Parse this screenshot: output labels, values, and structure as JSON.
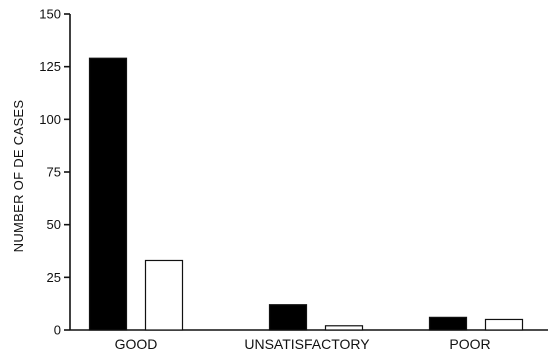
{
  "chart_data": {
    "type": "bar",
    "title": "",
    "xlabel": "",
    "ylabel": "NUMBER OF DE CASES",
    "categories": [
      "GOOD",
      "UNSATISFACTORY",
      "POOR"
    ],
    "series": [
      {
        "values": [
          129,
          12,
          6
        ],
        "color": "#000000"
      },
      {
        "values": [
          33,
          2,
          5
        ],
        "color": "#ffffff"
      }
    ],
    "ylim": [
      0,
      150
    ],
    "yticks": [
      "0",
      "25",
      "50",
      "75",
      "100",
      "125",
      "150"
    ],
    "grid": false,
    "legend": false
  }
}
